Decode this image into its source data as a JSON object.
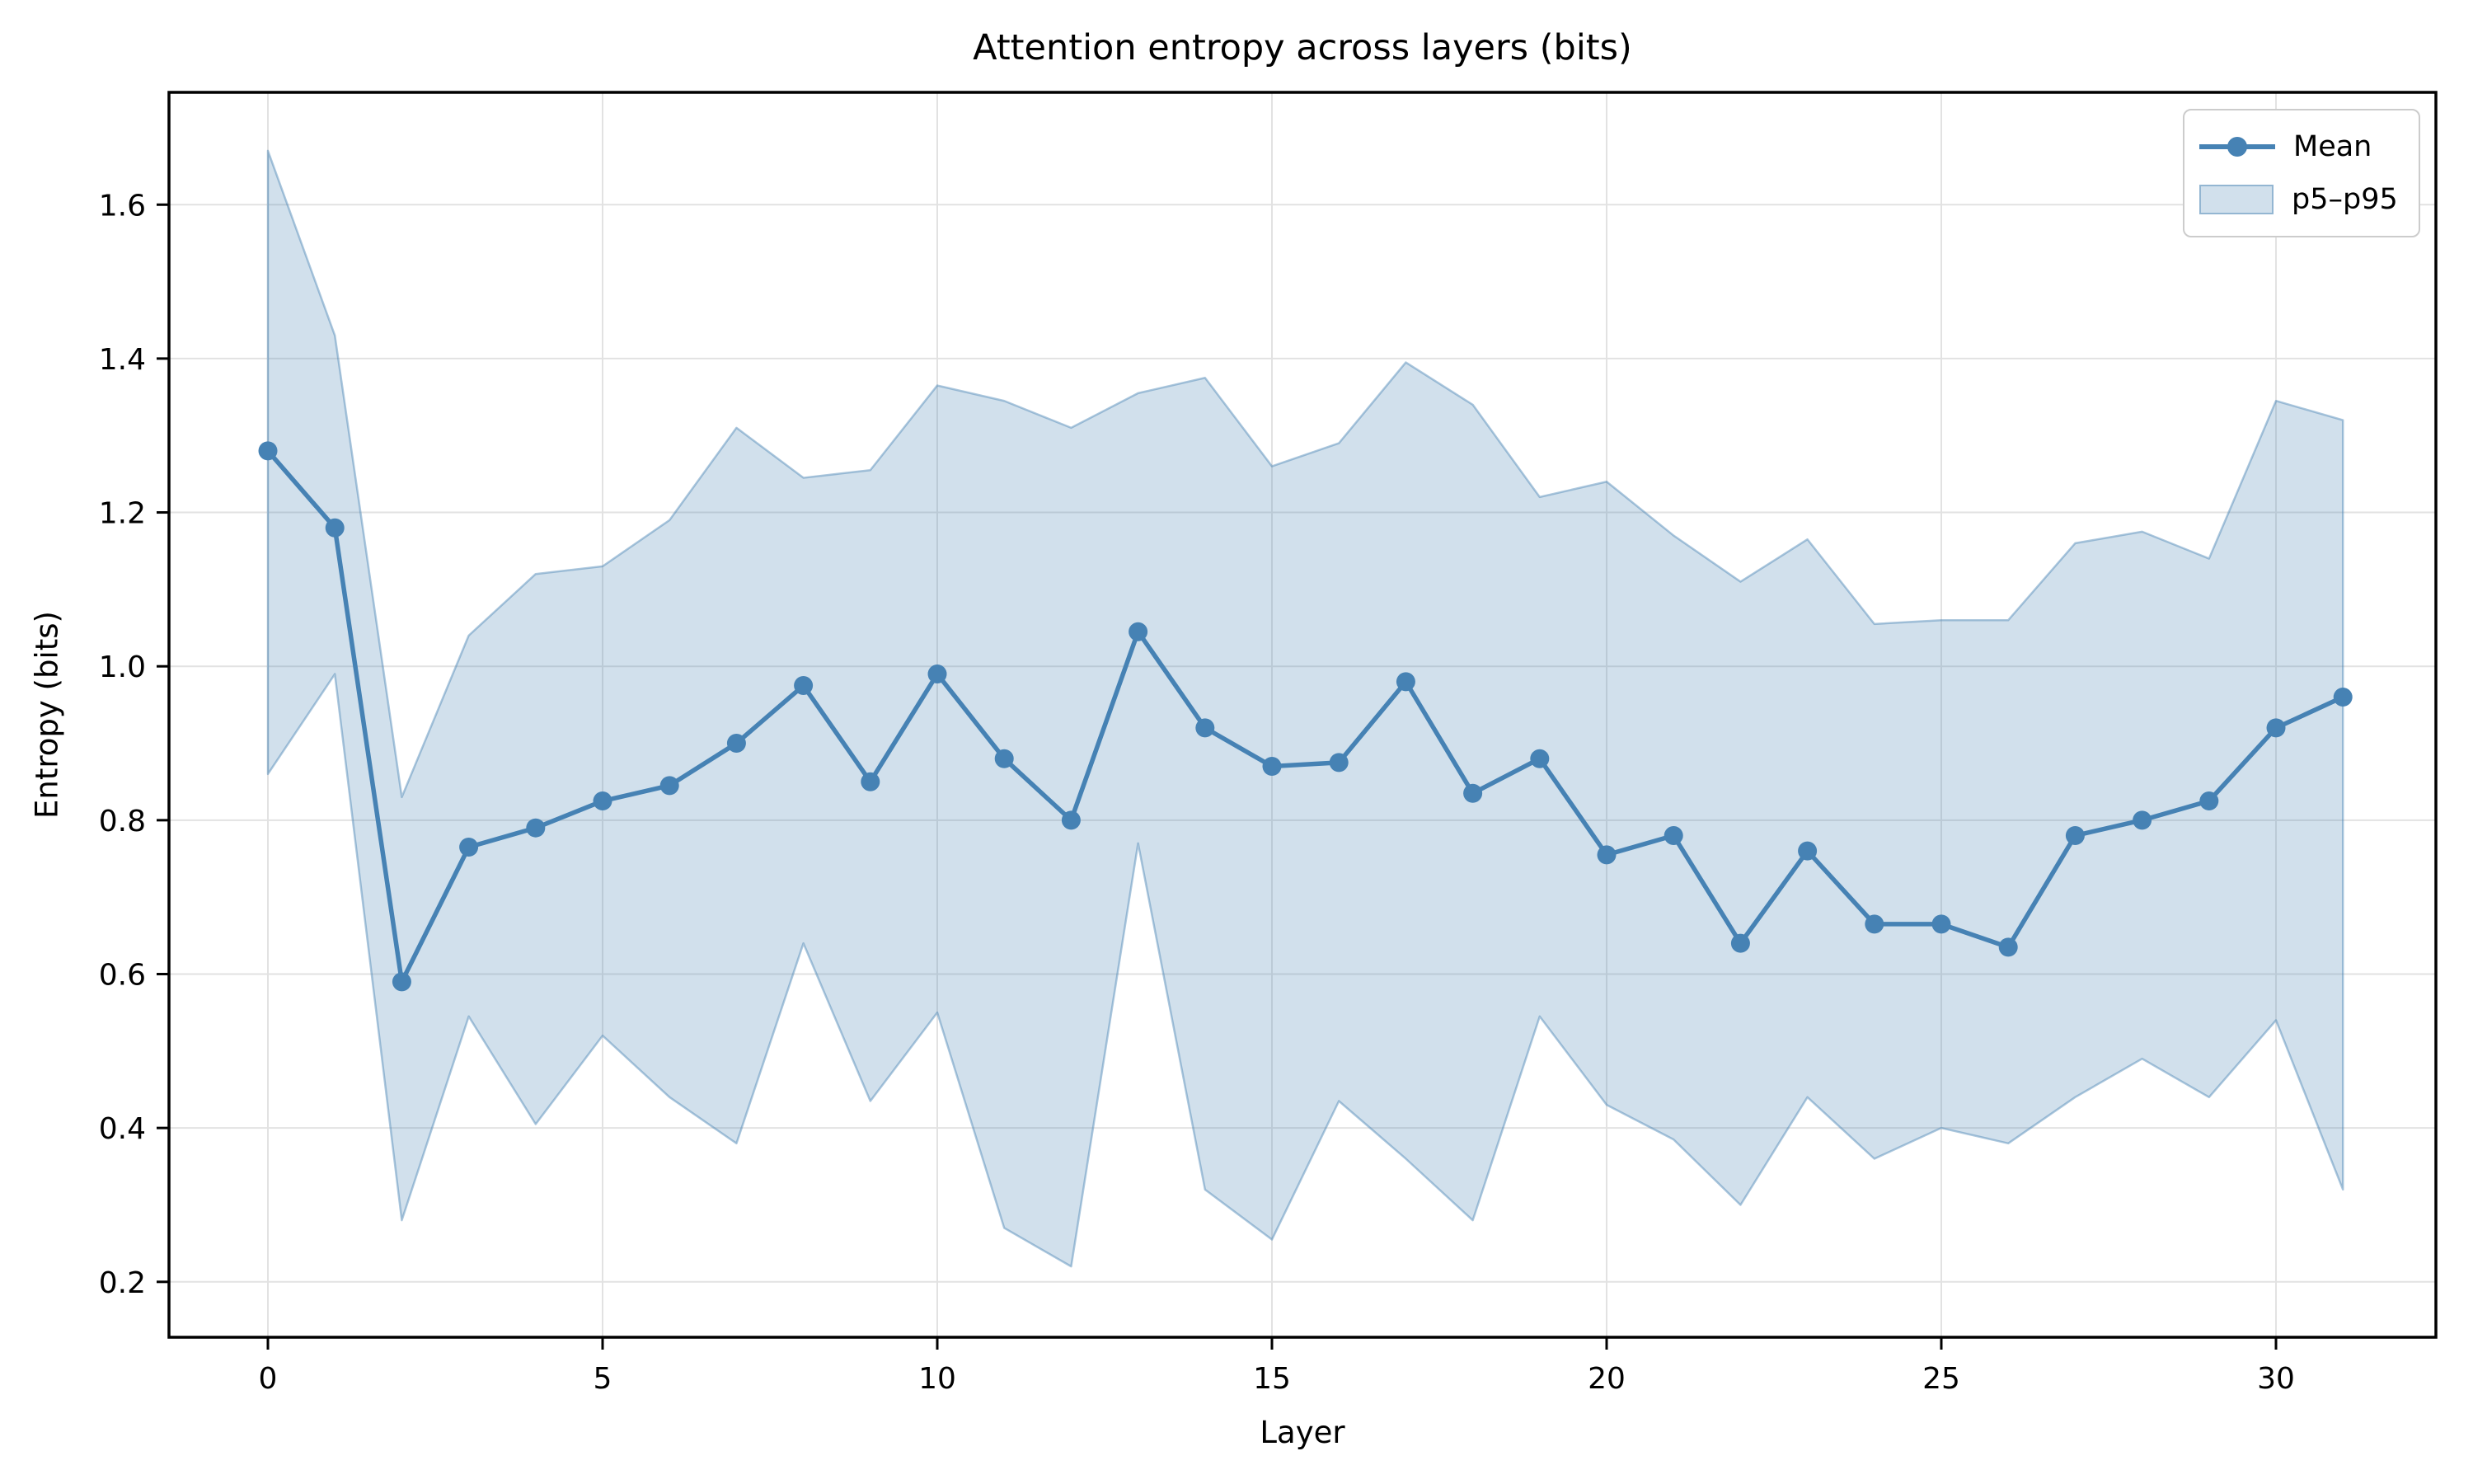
{
  "figure": {
    "title": "Attention entropy across layers (bits)"
  },
  "x_axis": {
    "label": "Layer",
    "tick_values": [
      0,
      5,
      10,
      15,
      20,
      25,
      30
    ],
    "tick_labels": [
      "0",
      "5",
      "10",
      "15",
      "20",
      "25",
      "30"
    ]
  },
  "y_axis": {
    "label": "Entropy (bits)",
    "tick_values": [
      0.2,
      0.4,
      0.6,
      0.8,
      1.0,
      1.2,
      1.4,
      1.6
    ],
    "tick_labels": [
      "0.2",
      "0.4",
      "0.6",
      "0.8",
      "1.0",
      "1.2",
      "1.4",
      "1.6"
    ]
  },
  "legend": {
    "items": [
      {
        "label": "Mean",
        "type": "line"
      },
      {
        "label": "p5–p95",
        "type": "patch"
      }
    ]
  },
  "colors": {
    "line": "#4682b4",
    "band_fill": "rgba(70,130,180,0.25)",
    "band_edge": "rgba(70,130,180,0.45)",
    "grid": "#e2e2e2",
    "spine": "#000000",
    "tick": "#000000",
    "text": "#000000",
    "legend_border": "#cccccc",
    "background": "#ffffff"
  },
  "chart_data": {
    "type": "line",
    "title": "Attention entropy across layers (bits)",
    "xlabel": "Layer",
    "ylabel": "Entropy (bits)",
    "x": [
      0,
      1,
      2,
      3,
      4,
      5,
      6,
      7,
      8,
      9,
      10,
      11,
      12,
      13,
      14,
      15,
      16,
      17,
      18,
      19,
      20,
      21,
      22,
      23,
      24,
      25,
      26,
      27,
      28,
      29,
      30,
      31
    ],
    "series": [
      {
        "name": "Mean",
        "values": [
          1.28,
          1.18,
          0.59,
          0.765,
          0.79,
          0.825,
          0.845,
          0.9,
          0.975,
          0.85,
          0.99,
          0.88,
          0.8,
          1.045,
          0.92,
          0.87,
          0.875,
          0.98,
          0.835,
          0.88,
          0.755,
          0.78,
          0.64,
          0.76,
          0.665,
          0.665,
          0.635,
          0.78,
          0.8,
          0.825,
          0.92,
          0.96
        ]
      },
      {
        "name": "p95",
        "values": [
          1.67,
          1.43,
          0.83,
          1.04,
          1.12,
          1.13,
          1.19,
          1.31,
          1.245,
          1.255,
          1.365,
          1.345,
          1.31,
          1.355,
          1.375,
          1.26,
          1.29,
          1.395,
          1.34,
          1.22,
          1.24,
          1.17,
          1.11,
          1.165,
          1.055,
          1.06,
          1.06,
          1.16,
          1.175,
          1.14,
          1.345,
          1.32
        ]
      },
      {
        "name": "p5",
        "values": [
          0.86,
          0.99,
          0.28,
          0.545,
          0.405,
          0.52,
          0.44,
          0.38,
          0.64,
          0.435,
          0.55,
          0.27,
          0.22,
          0.77,
          0.32,
          0.255,
          0.435,
          0.36,
          0.28,
          0.545,
          0.43,
          0.385,
          0.3,
          0.44,
          0.36,
          0.4,
          0.38,
          0.44,
          0.49,
          0.44,
          0.54,
          0.32
        ]
      }
    ],
    "band": {
      "name": "p5–p95",
      "upper_series": "p95",
      "lower_series": "p5"
    },
    "xlim": [
      -1.478,
      32.389
    ],
    "ylim": [
      0.128,
      1.746
    ],
    "grid": true,
    "legend_position": "upper right"
  }
}
